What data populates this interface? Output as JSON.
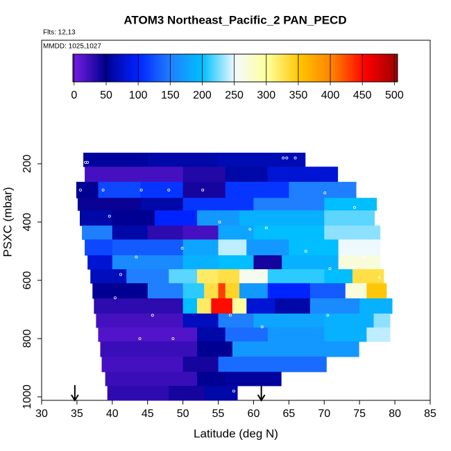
{
  "chart_data": {
    "type": "heatmap",
    "title": "ATOM3 Northeast_Pacific_2 PAN_PECD",
    "annotations": [
      "Flts: 12,13",
      "MMDD: 1025,1027"
    ],
    "x_label": "Latitude (deg N)",
    "y_label": "PSXC (mbar)",
    "xlim": [
      30,
      85
    ],
    "xticks": [
      30,
      35,
      40,
      45,
      50,
      55,
      60,
      65,
      70,
      75,
      80,
      85
    ],
    "ylim": [
      1012,
      -224
    ],
    "yticks": [
      200,
      400,
      600,
      800,
      1000
    ],
    "clim": [
      -2,
      505
    ],
    "cticks": [
      0,
      50,
      100,
      150,
      200,
      250,
      300,
      350,
      400,
      450,
      500
    ],
    "colorscale": [
      "#7a1ee6",
      "#00008f",
      "#0022ff",
      "#1f7fff",
      "#00bfff",
      "#f4faff",
      "#ffff9a",
      "#ffc400",
      "#ff8000",
      "#ff0000",
      "#9a0000"
    ],
    "rows": [
      {
        "y": [
          162,
          210
        ],
        "x": [
          35.9,
          45,
          55,
          67.3
        ],
        "values": [
          55,
          60,
          65
        ]
      },
      {
        "y": [
          210,
          262
        ],
        "x": [
          36.1,
          50,
          56,
          62,
          71.9
        ],
        "values": [
          20,
          35,
          60,
          80
        ]
      },
      {
        "y": [
          262,
          317
        ],
        "x": [
          34.9,
          38,
          44,
          50,
          56,
          65,
          74.5
        ],
        "values": [
          50,
          120,
          110,
          40,
          110,
          150
        ]
      },
      {
        "y": [
          317,
          360
        ],
        "x": [
          35.1,
          44,
          50,
          60,
          70,
          77.4
        ],
        "values": [
          45,
          60,
          110,
          150,
          200
        ]
      },
      {
        "y": [
          360,
          412
        ],
        "x": [
          35.4,
          40,
          46,
          52,
          58,
          70,
          77.1
        ],
        "values": [
          60,
          50,
          100,
          170,
          190,
          220
        ]
      },
      {
        "y": [
          412,
          460
        ],
        "x": [
          35.7,
          40,
          45,
          50,
          55,
          60,
          70,
          77.9
        ],
        "values": [
          150,
          60,
          30,
          20,
          180,
          200,
          230
        ]
      },
      {
        "y": [
          460,
          514
        ],
        "x": [
          36.1,
          40,
          50,
          55,
          59,
          65,
          72,
          77.9
        ],
        "values": [
          120,
          130,
          180,
          240,
          170,
          200,
          250
        ]
      },
      {
        "y": [
          514,
          562
        ],
        "x": [
          36.5,
          40,
          50,
          55,
          60,
          64,
          72,
          77.9
        ],
        "values": [
          80,
          160,
          190,
          200,
          40,
          190,
          270
        ]
      },
      {
        "y": [
          562,
          610
        ],
        "x": [
          36.9,
          42,
          48,
          52,
          55,
          58,
          62,
          70,
          74,
          78.4
        ],
        "values": [
          70,
          150,
          220,
          320,
          330,
          260,
          210,
          200,
          330
        ]
      },
      {
        "y": [
          610,
          662
        ],
        "x": [
          37.2,
          45,
          50,
          53,
          55,
          56,
          58,
          62,
          68,
          73,
          76,
          78.8
        ],
        "values": [
          50,
          150,
          210,
          330,
          430,
          340,
          170,
          100,
          130,
          270,
          350
        ]
      },
      {
        "y": [
          662,
          714
        ],
        "x": [
          37.4,
          50,
          52,
          54,
          57,
          59,
          63,
          68,
          75,
          79.6
        ],
        "values": [
          30,
          200,
          320,
          450,
          300,
          80,
          60,
          160,
          190
        ]
      },
      {
        "y": [
          714,
          762
        ],
        "x": [
          37.7,
          50,
          55,
          60,
          70,
          77,
          79.3
        ],
        "values": [
          20,
          70,
          150,
          180,
          190,
          230
        ]
      },
      {
        "y": [
          762,
          810
        ],
        "x": [
          38,
          52,
          56,
          62,
          70,
          76,
          79.3
        ],
        "values": [
          15,
          60,
          140,
          170,
          190,
          240
        ]
      },
      {
        "y": [
          810,
          862
        ],
        "x": [
          38.3,
          52,
          57,
          74.9
        ],
        "values": [
          25,
          50,
          170
        ]
      },
      {
        "y": [
          862,
          914
        ],
        "x": [
          38.5,
          50,
          55,
          70.3
        ],
        "values": [
          20,
          40,
          140
        ]
      },
      {
        "y": [
          914,
          962
        ],
        "x": [
          39,
          52,
          56,
          63.9
        ],
        "values": [
          25,
          50,
          55
        ]
      },
      {
        "y": [
          962,
          1012
        ],
        "x": [
          39.3,
          48,
          53,
          57.7
        ],
        "values": [
          30,
          40,
          60
        ]
      }
    ],
    "points": {
      "x": [
        36.2,
        36.5,
        64.2,
        64.7,
        65.9,
        35.5,
        38.7,
        44.1,
        48.0,
        52.8,
        70.1,
        74.3,
        39.6,
        55.2,
        59.5,
        61.8,
        75.5,
        43.4,
        49.9,
        41.2,
        67.4,
        70.8,
        77.8,
        40.4,
        45.7,
        56.7,
        61.2,
        70.5,
        43.9,
        48.6,
        57.2
      ],
      "y": [
        195,
        195,
        180,
        180,
        180,
        290,
        290,
        290,
        290,
        290,
        300,
        350,
        380,
        400,
        425,
        420,
        520,
        520,
        490,
        580,
        500,
        560,
        590,
        660,
        720,
        720,
        760,
        720,
        800,
        800,
        980
      ]
    },
    "arrows_x": [
      34.7,
      61.1
    ]
  }
}
